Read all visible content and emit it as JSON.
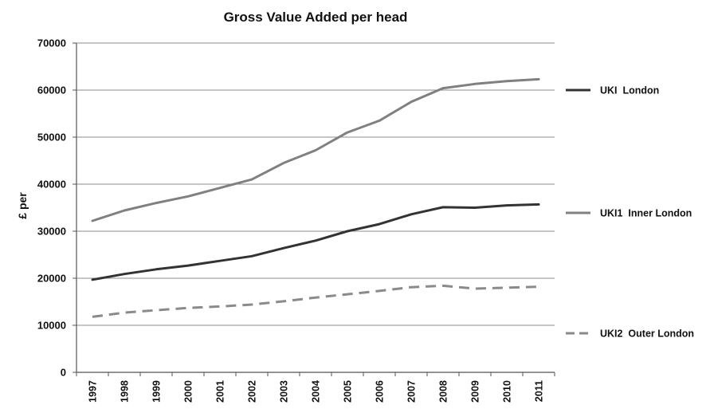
{
  "chart_data": {
    "type": "line",
    "title": "Gross Value Added per head",
    "xlabel": "",
    "ylabel": "£ per",
    "categories": [
      "1997",
      "1998",
      "1999",
      "2000",
      "2001",
      "2002",
      "2003",
      "2004",
      "2005",
      "2006",
      "2007",
      "2008",
      "2009",
      "2010",
      "2011"
    ],
    "y_ticks": [
      "0",
      "10000",
      "20000",
      "30000",
      "40000",
      "50000",
      "60000",
      "70000"
    ],
    "ylim": [
      0,
      70000
    ],
    "grid": "horizontal",
    "legend_position": "right",
    "series": [
      {
        "name": "UKI  London",
        "color": "#333333",
        "dash": "solid",
        "values": [
          19700,
          20900,
          21900,
          22700,
          23700,
          24700,
          26400,
          28000,
          30000,
          31500,
          33600,
          35100,
          35000,
          35500,
          35700
        ]
      },
      {
        "name": "UKI1  Inner London",
        "color": "#808080",
        "dash": "solid",
        "values": [
          32200,
          34400,
          36000,
          37400,
          39200,
          41000,
          44500,
          47200,
          51000,
          53500,
          57500,
          60400,
          61300,
          61900,
          62300
        ]
      },
      {
        "name": "UKI2  Outer London",
        "color": "#8a8a8a",
        "dash": "dashed",
        "values": [
          11800,
          12700,
          13200,
          13700,
          14000,
          14400,
          15100,
          15900,
          16600,
          17300,
          18100,
          18400,
          17800,
          18000,
          18200
        ]
      }
    ]
  }
}
